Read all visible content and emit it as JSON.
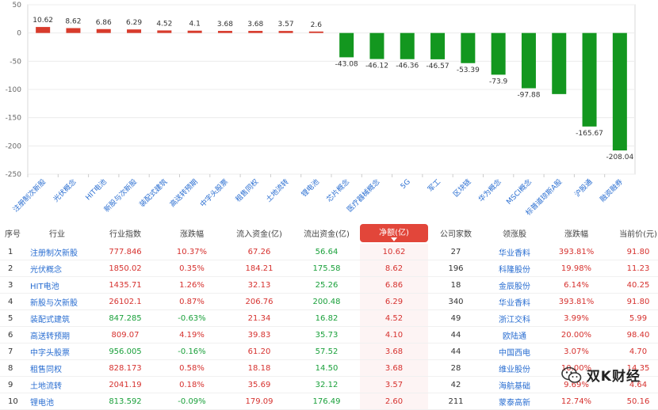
{
  "chart_data": {
    "type": "bar",
    "categories": [
      "注册制次新股",
      "光伏概念",
      "HIT电池",
      "新股与次新股",
      "装配式建筑",
      "高送转预期",
      "中字头股票",
      "租售同权",
      "土地流转",
      "锂电池",
      "芯片概念",
      "医疗器械概念",
      "5G",
      "军工",
      "区块链",
      "华为概念",
      "MSCI概念",
      "标普道琼斯A股",
      "沪股通",
      "融资融券"
    ],
    "values": [
      10.62,
      8.62,
      6.86,
      6.29,
      4.52,
      4.1,
      3.68,
      3.68,
      3.57,
      2.6,
      -43.08,
      -46.12,
      -46.36,
      -46.57,
      -53.39,
      -73.9,
      -97.88,
      -108.2,
      -165.67,
      -208.04
    ],
    "data_labels": [
      "10.62",
      "8.62",
      "6.86",
      "6.29",
      "4.52",
      "4.1",
      "3.68",
      "3.68",
      "3.57",
      "2.6",
      "-43.08",
      "-46.12",
      "-46.36",
      "-46.57",
      "-53.39",
      "-73.9",
      "-97.88",
      "",
      "-165.67",
      "-208.04"
    ],
    "yticks": [
      50,
      0,
      -50,
      -100,
      -150,
      -200,
      -250
    ],
    "ylim": [
      -250,
      50
    ],
    "positive_color": "#d83b2c",
    "negative_color": "#13971f",
    "grid": true,
    "title": "",
    "xlabel": "",
    "ylabel": ""
  },
  "table": {
    "headers": [
      "序号",
      "行业",
      "行业指数",
      "涨跌幅",
      "流入资金(亿)",
      "流出资金(亿)",
      "净额(亿)",
      "公司家数",
      "领涨股",
      "涨跌幅",
      "当前价(元)"
    ],
    "rows": [
      [
        "1",
        "注册制次新股",
        "777.846",
        "10.37%",
        "67.26",
        "56.64",
        "10.62",
        "27",
        "华业香料",
        "393.81%",
        "91.80"
      ],
      [
        "2",
        "光伏概念",
        "1850.02",
        "0.35%",
        "184.21",
        "175.58",
        "8.62",
        "196",
        "科隆股份",
        "19.98%",
        "11.23"
      ],
      [
        "3",
        "HIT电池",
        "1435.71",
        "1.26%",
        "32.13",
        "25.26",
        "6.86",
        "18",
        "金辰股份",
        "6.14%",
        "40.25"
      ],
      [
        "4",
        "新股与次新股",
        "26102.1",
        "0.87%",
        "206.76",
        "200.48",
        "6.29",
        "340",
        "华业香料",
        "393.81%",
        "91.80"
      ],
      [
        "5",
        "装配式建筑",
        "847.285",
        "-0.63%",
        "21.34",
        "16.82",
        "4.52",
        "49",
        "浙江交科",
        "3.99%",
        "5.99"
      ],
      [
        "6",
        "高送转预期",
        "809.07",
        "4.19%",
        "39.83",
        "35.73",
        "4.10",
        "44",
        "欧陆通",
        "20.00%",
        "98.40"
      ],
      [
        "7",
        "中字头股票",
        "956.005",
        "-0.16%",
        "61.20",
        "57.52",
        "3.68",
        "44",
        "中国西电",
        "3.07%",
        "4.70"
      ],
      [
        "8",
        "租售同权",
        "828.173",
        "0.58%",
        "18.18",
        "14.50",
        "3.68",
        "28",
        "维业股份",
        "10.00%",
        "14.35"
      ],
      [
        "9",
        "土地流转",
        "2041.19",
        "0.18%",
        "35.69",
        "32.12",
        "3.57",
        "42",
        "海航基础",
        "9.69%",
        "4.64"
      ],
      [
        "10",
        "锂电池",
        "813.592",
        "-0.09%",
        "179.09",
        "176.49",
        "2.60",
        "211",
        "蒙泰高新",
        "12.74%",
        "50.16"
      ]
    ]
  },
  "watermark": {
    "text": "双K财经",
    "icon": "wechat-icon"
  },
  "colors": {
    "accent": "#e2463a",
    "link": "#2a6ed1",
    "up": "#d6312e",
    "down": "#19a03a"
  }
}
